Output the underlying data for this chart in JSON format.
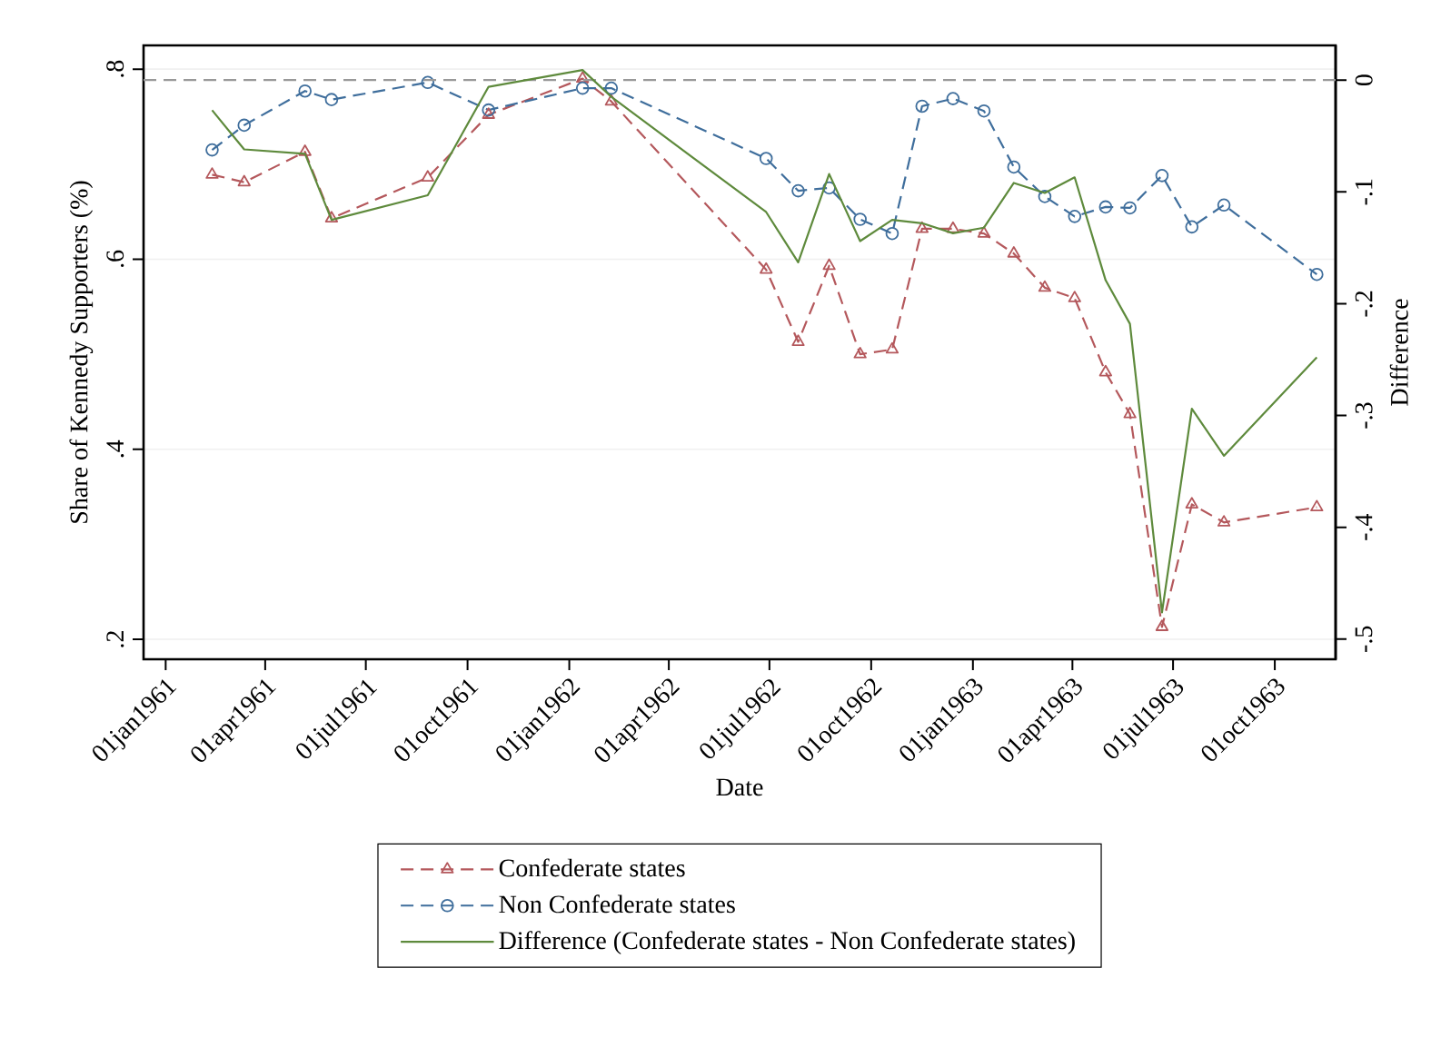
{
  "chart_data": {
    "type": "line",
    "xlabel": "Date",
    "ylabel": "Share of Kennedy Supporters (%)",
    "y2label": "Difference",
    "x": [
      "1961-02-12",
      "1961-03-13",
      "1961-05-07",
      "1961-05-31",
      "1961-08-26",
      "1961-10-20",
      "1962-01-13",
      "1962-02-08",
      "1962-06-28",
      "1962-07-27",
      "1962-08-24",
      "1962-09-21",
      "1962-10-20",
      "1962-11-16",
      "1962-12-14",
      "1963-01-11",
      "1963-02-07",
      "1963-03-07",
      "1963-04-03",
      "1963-05-01",
      "1963-05-23",
      "1963-06-21",
      "1963-07-18",
      "1963-08-16",
      "1963-11-08"
    ],
    "xlim": [
      "1960-12-12",
      "1963-11-25"
    ],
    "xticks": [
      {
        "value": "1961-01-01",
        "label": "01jan1961"
      },
      {
        "value": "1961-04-01",
        "label": "01apr1961"
      },
      {
        "value": "1961-07-01",
        "label": "01jul1961"
      },
      {
        "value": "1961-10-01",
        "label": "01oct1961"
      },
      {
        "value": "1962-01-01",
        "label": "01jan1962"
      },
      {
        "value": "1962-04-01",
        "label": "01apr1962"
      },
      {
        "value": "1962-07-01",
        "label": "01jul1962"
      },
      {
        "value": "1962-10-01",
        "label": "01oct1962"
      },
      {
        "value": "1963-01-01",
        "label": "01jan1963"
      },
      {
        "value": "1963-04-01",
        "label": "01apr1963"
      },
      {
        "value": "1963-07-01",
        "label": "01jul1963"
      },
      {
        "value": "1963-10-01",
        "label": "01oct1963"
      }
    ],
    "ylim": [
      0.179,
      0.825
    ],
    "yticks": [
      {
        "value": 0.2,
        "label": ".2"
      },
      {
        "value": 0.4,
        "label": ".4"
      },
      {
        "value": 0.6,
        "label": ".6"
      },
      {
        "value": 0.8,
        "label": ".8"
      }
    ],
    "y2lim": [
      -0.518,
      0.031
    ],
    "y2ticks": [
      {
        "value": -0.5,
        "label": "-.5"
      },
      {
        "value": -0.4,
        "label": "-.4"
      },
      {
        "value": -0.3,
        "label": "-.3"
      },
      {
        "value": -0.2,
        "label": "-.2"
      },
      {
        "value": -0.1,
        "label": "-.1"
      },
      0
    ],
    "series": [
      {
        "name": "Confederate states",
        "color": "#b4585c",
        "marker": "triangle",
        "line_style": "dashed",
        "values": [
          0.689,
          0.681,
          0.713,
          0.643,
          0.686,
          0.752,
          0.79,
          0.766,
          0.589,
          0.513,
          0.593,
          0.5,
          0.505,
          0.632,
          0.632,
          0.627,
          0.606,
          0.57,
          0.559,
          0.481,
          0.437,
          0.213,
          0.342,
          0.323,
          0.339
        ]
      },
      {
        "name": "Non Confederate states",
        "color": "#3f6e9c",
        "marker": "circle",
        "line_style": "dashed",
        "values": [
          0.715,
          0.741,
          0.777,
          0.768,
          0.786,
          0.757,
          0.78,
          0.78,
          0.706,
          0.672,
          0.675,
          0.642,
          0.627,
          0.761,
          0.769,
          0.756,
          0.697,
          0.666,
          0.645,
          0.655,
          0.654,
          0.688,
          0.634,
          0.657,
          0.584
        ]
      },
      {
        "name": "Difference (Confederate states - Non Confederate states)",
        "color": "#5e8a3c",
        "marker": "none",
        "line_style": "solid",
        "axis": "y2",
        "values": [
          -0.027,
          -0.062,
          -0.066,
          -0.125,
          -0.103,
          -0.006,
          0.009,
          -0.015,
          -0.118,
          -0.163,
          -0.084,
          -0.144,
          -0.125,
          -0.128,
          -0.137,
          -0.132,
          -0.092,
          -0.101,
          -0.087,
          -0.179,
          -0.218,
          -0.476,
          -0.294,
          -0.336,
          -0.248
        ]
      }
    ],
    "ref_lines": [
      {
        "axis": "y2",
        "value": 0,
        "color": "#999999",
        "line_style": "dashed"
      }
    ],
    "grid": "y",
    "legend": "bottom"
  }
}
